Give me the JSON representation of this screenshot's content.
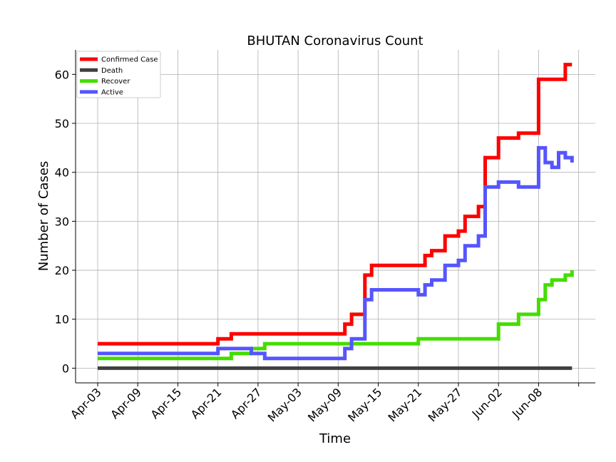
{
  "chart_data": {
    "type": "line",
    "title": "BHUTAN Coronavirus Count",
    "xlabel": "Time",
    "ylabel": "Number of Cases",
    "x_start": "2020-04-03",
    "x_tick_labels": [
      "Apr-03",
      "Apr-09",
      "Apr-15",
      "Apr-21",
      "Apr-27",
      "May-03",
      "May-09",
      "May-15",
      "May-21",
      "May-27",
      "Jun-02",
      "Jun-08"
    ],
    "ylim": [
      -3,
      65
    ],
    "y_ticks": [
      0,
      10,
      20,
      30,
      40,
      50,
      60
    ],
    "grid": true,
    "legend_position": "top-left",
    "x": [
      "2020-04-03",
      "2020-04-04",
      "2020-04-05",
      "2020-04-06",
      "2020-04-07",
      "2020-04-08",
      "2020-04-09",
      "2020-04-10",
      "2020-04-11",
      "2020-04-12",
      "2020-04-13",
      "2020-04-14",
      "2020-04-15",
      "2020-04-16",
      "2020-04-17",
      "2020-04-18",
      "2020-04-19",
      "2020-04-20",
      "2020-04-21",
      "2020-04-22",
      "2020-04-23",
      "2020-04-24",
      "2020-04-25",
      "2020-04-26",
      "2020-04-27",
      "2020-04-28",
      "2020-04-29",
      "2020-04-30",
      "2020-05-01",
      "2020-05-02",
      "2020-05-03",
      "2020-05-04",
      "2020-05-05",
      "2020-05-06",
      "2020-05-07",
      "2020-05-08",
      "2020-05-09",
      "2020-05-10",
      "2020-05-11",
      "2020-05-12",
      "2020-05-13",
      "2020-05-14",
      "2020-05-15",
      "2020-05-16",
      "2020-05-17",
      "2020-05-18",
      "2020-05-19",
      "2020-05-20",
      "2020-05-21",
      "2020-05-22",
      "2020-05-23",
      "2020-05-24",
      "2020-05-25",
      "2020-05-26",
      "2020-05-27",
      "2020-05-28",
      "2020-05-29",
      "2020-05-30",
      "2020-05-31",
      "2020-06-01",
      "2020-06-02",
      "2020-06-03",
      "2020-06-04",
      "2020-06-05",
      "2020-06-06",
      "2020-06-07",
      "2020-06-08",
      "2020-06-09",
      "2020-06-10",
      "2020-06-11",
      "2020-06-12",
      "2020-06-13"
    ],
    "series": [
      {
        "name": "Confirmed Case",
        "color": "#ff0000",
        "values": [
          5,
          5,
          5,
          5,
          5,
          5,
          5,
          5,
          5,
          5,
          5,
          5,
          5,
          5,
          5,
          5,
          5,
          5,
          6,
          6,
          7,
          7,
          7,
          7,
          7,
          7,
          7,
          7,
          7,
          7,
          7,
          7,
          7,
          7,
          7,
          7,
          7,
          9,
          11,
          11,
          19,
          21,
          21,
          21,
          21,
          21,
          21,
          21,
          21,
          23,
          24,
          24,
          27,
          27,
          28,
          31,
          31,
          33,
          43,
          43,
          47,
          47,
          47,
          48,
          48,
          48,
          59,
          59,
          59,
          59,
          62,
          62
        ]
      },
      {
        "name": "Death",
        "color": "#404040",
        "values": [
          0,
          0,
          0,
          0,
          0,
          0,
          0,
          0,
          0,
          0,
          0,
          0,
          0,
          0,
          0,
          0,
          0,
          0,
          0,
          0,
          0,
          0,
          0,
          0,
          0,
          0,
          0,
          0,
          0,
          0,
          0,
          0,
          0,
          0,
          0,
          0,
          0,
          0,
          0,
          0,
          0,
          0,
          0,
          0,
          0,
          0,
          0,
          0,
          0,
          0,
          0,
          0,
          0,
          0,
          0,
          0,
          0,
          0,
          0,
          0,
          0,
          0,
          0,
          0,
          0,
          0,
          0,
          0,
          0,
          0,
          0,
          0
        ]
      },
      {
        "name": "Recover",
        "color": "#44dd00",
        "values": [
          2,
          2,
          2,
          2,
          2,
          2,
          2,
          2,
          2,
          2,
          2,
          2,
          2,
          2,
          2,
          2,
          2,
          2,
          2,
          2,
          3,
          3,
          3,
          4,
          4,
          5,
          5,
          5,
          5,
          5,
          5,
          5,
          5,
          5,
          5,
          5,
          5,
          5,
          5,
          5,
          5,
          5,
          5,
          5,
          5,
          5,
          5,
          5,
          6,
          6,
          6,
          6,
          6,
          6,
          6,
          6,
          6,
          6,
          6,
          6,
          9,
          9,
          9,
          11,
          11,
          11,
          14,
          17,
          18,
          18,
          19,
          20
        ]
      },
      {
        "name": "Active",
        "color": "#5555ff",
        "values": [
          3,
          3,
          3,
          3,
          3,
          3,
          3,
          3,
          3,
          3,
          3,
          3,
          3,
          3,
          3,
          3,
          3,
          3,
          4,
          4,
          4,
          4,
          4,
          3,
          3,
          2,
          2,
          2,
          2,
          2,
          2,
          2,
          2,
          2,
          2,
          2,
          2,
          4,
          6,
          6,
          14,
          16,
          16,
          16,
          16,
          16,
          16,
          16,
          15,
          17,
          18,
          18,
          21,
          21,
          22,
          25,
          25,
          27,
          37,
          37,
          38,
          38,
          38,
          37,
          37,
          37,
          45,
          42,
          41,
          44,
          43,
          42
        ]
      }
    ]
  }
}
